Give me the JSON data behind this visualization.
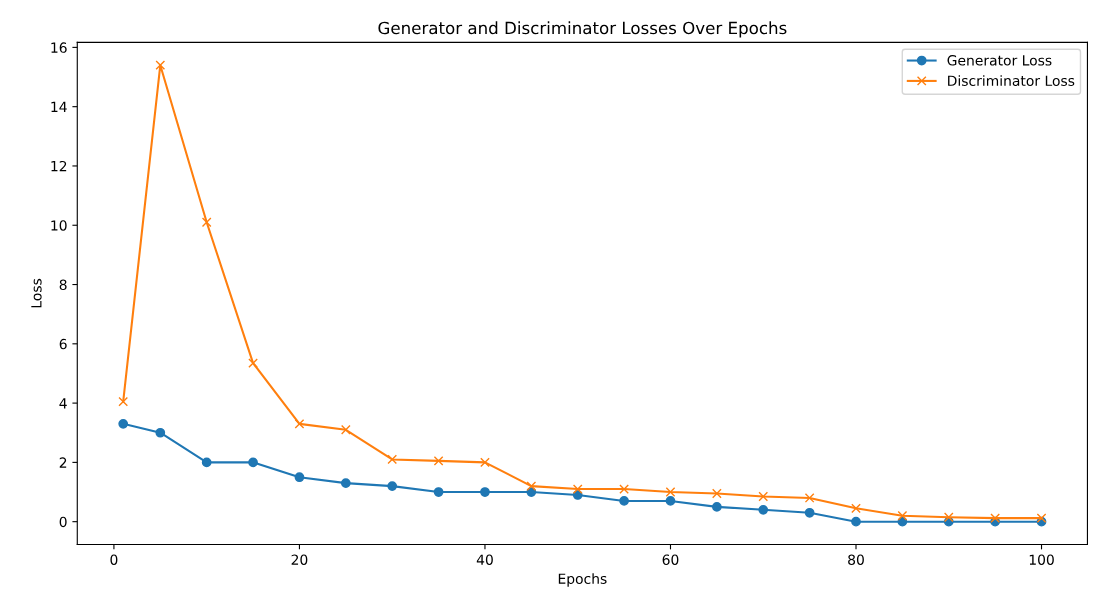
{
  "chart_data": {
    "type": "line",
    "title": "Generator and Discriminator Losses Over Epochs",
    "xlabel": "Epochs",
    "ylabel": "Loss",
    "x": [
      1,
      5,
      10,
      15,
      20,
      25,
      30,
      35,
      40,
      45,
      50,
      55,
      60,
      65,
      70,
      75,
      80,
      85,
      90,
      95,
      100
    ],
    "series": [
      {
        "name": "Generator Loss",
        "color": "#1f77b4",
        "marker": "circle",
        "values": [
          3.3,
          3.0,
          2.0,
          2.0,
          1.5,
          1.3,
          1.2,
          1.0,
          1.0,
          1.0,
          0.9,
          0.7,
          0.7,
          0.5,
          0.4,
          0.3,
          0.0,
          0.0,
          0.0,
          0.0,
          0.0
        ]
      },
      {
        "name": "Discriminator Loss",
        "color": "#ff7f0e",
        "marker": "cross",
        "values": [
          4.05,
          15.4,
          10.1,
          5.35,
          3.3,
          3.1,
          2.1,
          2.05,
          2.0,
          1.2,
          1.1,
          1.1,
          1.0,
          0.95,
          0.85,
          0.8,
          0.45,
          0.2,
          0.15,
          0.12,
          0.12
        ]
      }
    ],
    "xlim": [
      -3.95,
      104.95
    ],
    "xticks": [
      0,
      20,
      40,
      60,
      80,
      100
    ],
    "ylim": [
      -0.77,
      16.17
    ],
    "yticks": [
      0,
      2,
      4,
      6,
      8,
      10,
      12,
      14,
      16
    ],
    "grid": false,
    "legend": "top right",
    "line_style": "solid"
  }
}
